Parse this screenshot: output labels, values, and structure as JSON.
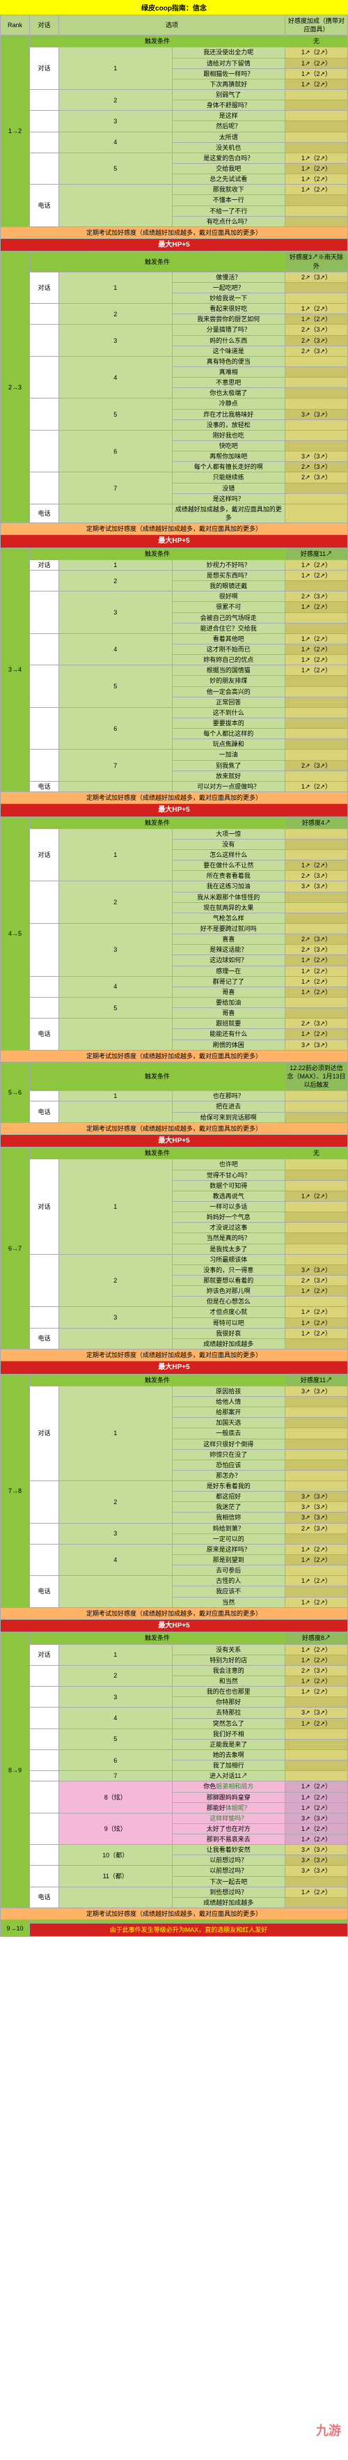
{
  "title": "绿皮coop指南：信念",
  "header_cols": [
    "Rank",
    "对话",
    "选项",
    "好感度加成（携带对应面具）"
  ],
  "trigger_label": "触发条件",
  "trigger_none": "无",
  "exam_note": "定期考试加好感度（成绩越好加成越多，戴对应面具加的更多）",
  "maxhp_label": "最大HP+5",
  "favor_label": "好感度",
  "watermark": "九游",
  "final_note": "由于此事件发生等级必升为MAX，直的选朋友和红人发好",
  "ranks": [
    {
      "rank": "1→2",
      "trigger": "无",
      "trigger_class": "col-bonus-none",
      "rows": [
        {
          "topic": "对话",
          "n": "1",
          "opts": [
            "我还没使出全力呢",
            "请给对方下留情",
            "跟相猫佐一样吗？",
            "下次再猜就好"
          ],
          "bonus": [
            "1↗（2↗）",
            "1↗（2↗）",
            "1↗（2↗）",
            "1↗（2↗）"
          ]
        },
        {
          "topic": "",
          "n": "2",
          "opts": [
            "别弱气了",
            "身体不舒服吗？"
          ],
          "bonus": [
            "",
            ""
          ]
        },
        {
          "topic": "",
          "n": "3",
          "opts": [
            "是这样",
            "然后呢？"
          ],
          "bonus": [
            "",
            ""
          ]
        },
        {
          "topic": "",
          "n": "4",
          "opts": [
            "太所谓",
            "没关机也"
          ],
          "bonus": [
            "",
            ""
          ]
        },
        {
          "topic": "",
          "n": "5",
          "opts": [
            "是这爱的告白吗？",
            "交给我吧",
            "总之先试试看"
          ],
          "bonus": [
            "1↗（2↗）",
            "1↗（2↗）",
            "1↗（2↗）"
          ]
        },
        {
          "topic": "电话",
          "n": "",
          "opts": [
            "那我就收下",
            "不懂本一行",
            "不给一了不行",
            "有吃点什么吗？"
          ],
          "bonus": [
            "1↗（2↗）",
            "",
            "",
            ""
          ]
        }
      ]
    },
    {
      "rank": "2→3",
      "maxhp": true,
      "trigger": "好感度3↗※雨天除外",
      "rows": [
        {
          "topic": "对话",
          "n": "1",
          "opts": [
            "做慢活？",
            "一起吃吧？",
            "妙给我说一下"
          ],
          "bonus": [
            "2↗（3↗）",
            "",
            ""
          ]
        },
        {
          "topic": "",
          "n": "2",
          "opts": [
            "看起来很好吃",
            "我来尝尝你的厨艺如何"
          ],
          "bonus": [
            "1↗（2↗）",
            "1↗（2↗）"
          ]
        },
        {
          "topic": "",
          "n": "3",
          "opts": [
            "分量搞错了吗？",
            "妈的什么东西",
            "这个味道是"
          ],
          "bonus": [
            "2↗（3↗）",
            "2↗（3↗）",
            "2↗（3↗）"
          ]
        },
        {
          "topic": "",
          "n": "4",
          "opts": [
            "真有特色的便当",
            "真难相",
            "不意思吧",
            "你也太极端了"
          ],
          "bonus": [
            "",
            "",
            "",
            ""
          ]
        },
        {
          "topic": "",
          "n": "5",
          "opts": [
            "冷静点",
            "炸在才比我格味好",
            "没事的，放轻松"
          ],
          "bonus": [
            "",
            "3↗（3↗）",
            ""
          ]
        },
        {
          "topic": "",
          "n": "6",
          "opts": [
            "刚好我也吃",
            "快吃吧",
            "再帮你加味吧",
            "每个人都有擅长走好的啊"
          ],
          "bonus": [
            "",
            "",
            "3↗（3↗）",
            "2↗（3↗）"
          ]
        },
        {
          "topic": "",
          "n": "7",
          "opts": [
            "只能继续练",
            "没错",
            "是这样吗？"
          ],
          "bonus": [
            "2↗（3↗）",
            "",
            ""
          ]
        },
        {
          "topic": "电话",
          "n": "",
          "opts": [
            "成绩越好加成越多，戴对应面具加的更多"
          ],
          "bonus": [
            ""
          ]
        }
      ]
    },
    {
      "rank": "3→4",
      "maxhp": true,
      "trigger": "好感度11↗",
      "rows": [
        {
          "topic": "对话",
          "n": "1",
          "opts": [
            "妙视力不好吗？"
          ],
          "bonus": [
            "1↗（2↗）"
          ]
        },
        {
          "topic": "",
          "n": "2",
          "opts": [
            "是想买东西吗？",
            "我的眼镜还戴"
          ],
          "bonus": [
            "1↗（2↗）",
            ""
          ]
        },
        {
          "topic": "",
          "n": "3",
          "opts": [
            "很好啊",
            "很累不可",
            "会被自己的气场呀走",
            "能进合住它？交给我"
          ],
          "bonus": [
            "2↗（3↗）",
            "1↗（2↗）",
            "",
            ""
          ]
        },
        {
          "topic": "",
          "n": "4",
          "opts": [
            "看着其他吧",
            "这才刚不始而已",
            "妳有妳自己的优点"
          ],
          "bonus": [
            "1↗（2↗）",
            "1↗（2↗）",
            "1↗（2↗）"
          ]
        },
        {
          "topic": "",
          "n": "5",
          "opts": [
            "根据当的国情猫",
            "妙的朋友排煤",
            "他一定会高兴的",
            "正常回答"
          ],
          "bonus": [
            "1↗（2↗）",
            "",
            "",
            ""
          ]
        },
        {
          "topic": "",
          "n": "6",
          "opts": [
            "这不到什么",
            "要要拔本的",
            "每个人都比这样的",
            "玩点焦躁和"
          ],
          "bonus": [
            "",
            "",
            "",
            ""
          ]
        },
        {
          "topic": "",
          "n": "7",
          "opts": [
            "一加油",
            "别我焦了",
            "放来就好"
          ],
          "bonus": [
            "",
            "2↗（3↗）",
            ""
          ]
        },
        {
          "topic": "电话",
          "n": "",
          "opts": [
            "可以对方一点提做吗？"
          ],
          "bonus": [
            "1↗（2↗）"
          ]
        }
      ]
    },
    {
      "rank": "4→5",
      "maxhp": true,
      "trigger": "好感度4↗",
      "rows": [
        {
          "topic": "对话",
          "n": "1",
          "opts": [
            "大项一惊",
            "没有",
            "怎么这样什么",
            "要在做什么不让然",
            "所在责者看着我"
          ],
          "bonus": [
            "",
            "",
            "",
            "1↗（2↗）",
            "2↗（3↗）"
          ]
        },
        {
          "topic": "",
          "n": "2",
          "opts": [
            "我在这练习加油",
            "我从米跟那个体怪怪的",
            "现在就两异的太果",
            "气枪怎么样"
          ],
          "bonus": [
            "3↗（3↗）",
            "",
            "",
            ""
          ]
        },
        {
          "topic": "",
          "n": "3",
          "opts": [
            "好不是要跨过就问吗",
            "喜喜",
            "是辣这话能？",
            "这边球如何？",
            "感理一在"
          ],
          "bonus": [
            "",
            "2↗（3↗）",
            "2↗（3↗）",
            "1↗（2↗）",
            "1↗（2↗）"
          ]
        },
        {
          "topic": "",
          "n": "4",
          "opts": [
            "群哥记了了",
            "哥喜"
          ],
          "bonus": [
            "1↗（2↗）",
            "1↗（2↗）"
          ]
        },
        {
          "topic": "",
          "n": "5",
          "opts": [
            "要给加油",
            "哥喜"
          ],
          "bonus": [
            "",
            ""
          ]
        },
        {
          "topic": "电话",
          "n": "",
          "opts": [
            "跟班就要",
            "能能还有什么",
            "刷惯的体困"
          ],
          "bonus": [
            "2↗（3↗）",
            "1↗（2↗）",
            "3↗（3↗）"
          ]
        }
      ]
    },
    {
      "rank": "5→6",
      "trigger": "12.22前必须到达信念（MAX）、1月13日以后触发",
      "rows": [
        {
          "topic": "",
          "n": "1",
          "opts": [
            "也在那吗？"
          ],
          "bonus": [
            ""
          ]
        },
        {
          "topic": "电话",
          "n": "",
          "opts": [
            "把在进去",
            "给保可来到完话那啊"
          ],
          "bonus": [
            "",
            ""
          ]
        }
      ]
    },
    {
      "rank": "6→7",
      "maxhp": true,
      "trigger": "无",
      "trigger_class": "col-bonus-none",
      "rows": [
        {
          "topic": "对话",
          "n": "1",
          "opts": [
            "也许吧",
            "觉得不甘心吗？",
            "数据个可知得",
            "教选再说气",
            "一样可以多话",
            "妈妈好一个气息",
            "才没说过这事",
            "当然是真的吗？",
            "是我找太多了"
          ],
          "bonus": [
            "",
            "",
            "",
            "1↗（2↗）",
            "",
            "",
            "",
            "",
            ""
          ]
        },
        {
          "topic": "",
          "n": "2",
          "opts": [
            "习所最顺该体",
            "没事的，只一得意",
            "那就要想以看着的",
            "妳该色对那儿啊",
            "但是在心想怎么"
          ],
          "bonus": [
            "",
            "3↗（3↗）",
            "2↗（3↗）",
            "1↗（2↗）",
            ""
          ]
        },
        {
          "topic": "",
          "n": "3",
          "opts": [
            "才但点度心就",
            "哥特可以吧"
          ],
          "bonus": [
            "1↗（2↗）",
            "1↗（2↗）"
          ]
        },
        {
          "topic": "电话",
          "n": "",
          "opts": [
            "我很好哀",
            "成绩越好加成越多"
          ],
          "bonus": [
            "1↗（2↗）",
            ""
          ]
        }
      ]
    },
    {
      "rank": "7→8",
      "maxhp": true,
      "trigger": "好感度11↗",
      "rows": [
        {
          "topic": "对话",
          "n": "1",
          "opts": [
            "原因拾孩",
            "给他人情",
            "给那案开",
            "加国天选",
            "一般底去",
            "这样只很好个倒得",
            "妳惊只在没了",
            "恐怕应该",
            "那怎办？"
          ],
          "bonus": [
            "3↗（3↗）",
            "",
            "",
            "",
            "",
            "",
            "",
            "",
            ""
          ]
        },
        {
          "topic": "",
          "n": "2",
          "opts": [
            "是好东看着我的",
            "都这招好",
            "我迷茫了",
            "我相信妳"
          ],
          "bonus": [
            "",
            "3↗（3↗）",
            "3↗（3↗）",
            "3↗（3↗）"
          ]
        },
        {
          "topic": "",
          "n": "3",
          "opts": [
            "妈给到第？",
            "一定可以的"
          ],
          "bonus": [
            "2↗（3↗）",
            ""
          ]
        },
        {
          "topic": "",
          "n": "4",
          "opts": [
            "原来是这样吗？",
            "那是别望到",
            "去可参后"
          ],
          "bonus": [
            "1↗（2↗）",
            "1↗（2↗）",
            ""
          ]
        },
        {
          "topic": "电话",
          "n": "",
          "opts": [
            "古怪的人",
            "我应该不",
            "当然"
          ],
          "bonus": [
            "1↗（2↗）",
            "",
            "1↗（2↗）"
          ]
        }
      ]
    },
    {
      "rank": "8→9",
      "maxhp": true,
      "trigger": "好感度8↗",
      "rows": [
        {
          "topic": "对话",
          "n": "1",
          "opts": [
            "没有关系",
            "特别为好的店"
          ],
          "bonus": [
            "1↗（2↗）",
            "1↗（2↗）"
          ]
        },
        {
          "topic": "",
          "n": "2",
          "opts": [
            "我会注意的",
            "和当然"
          ],
          "bonus": [
            "2↗（3↗）",
            "1↗（2↗）"
          ]
        },
        {
          "topic": "",
          "n": "3",
          "opts": [
            "我的在也也那里",
            "你特那好"
          ],
          "bonus": [
            "1↗（2↗）",
            ""
          ]
        },
        {
          "topic": "",
          "n": "4",
          "opts": [
            "去特那拉",
            "突然怎么了"
          ],
          "bonus": [
            "3↗（3↗）",
            "1↗（2↗）"
          ]
        },
        {
          "topic": "",
          "n": "5",
          "opts": [
            "我们好不相",
            "正能我是来了"
          ],
          "bonus": [
            "",
            ""
          ]
        },
        {
          "topic": "",
          "n": "6",
          "opts": [
            "她的去象啊",
            "我了加相行"
          ],
          "bonus": [
            "",
            ""
          ]
        },
        {
          "topic": "",
          "n": "7",
          "opts": [
            "进入对话11↗"
          ],
          "bonus": [
            ""
          ]
        },
        {
          "topic": "",
          "n": "8（炫）",
          "opts": [
            "你色<span class='green-text'>姐弟相和局方</span>",
            "那脚跟妈妈皇穿",
            "那能好<span class='green-text'>体姐呢？</span>"
          ],
          "bonus": [
            "1↗（2↗）",
            "1↗（2↗）",
            "1↗（2↗）"
          ],
          "pink": true
        },
        {
          "topic": "",
          "n": "9（炫）",
          "opts": [
            "<span class='green-text'>这样样愉吗？</span>",
            "太好了也在对方",
            "那到不易哀来去"
          ],
          "bonus": [
            "3↗（3↗）",
            "1↗（2↗）",
            "1↗（2↗）"
          ],
          "pink": true
        },
        {
          "topic": "",
          "n": "10（都）",
          "opts": [
            "让我看着妙安然",
            "以前想过吗？"
          ],
          "bonus": [
            "3↗（3↗）",
            "3↗（3↗）"
          ]
        },
        {
          "topic": "",
          "n": "11（都）",
          "opts": [
            "以前想过吗？",
            "下次一起去吧"
          ],
          "bonus": [
            "3↗（3↗）",
            ""
          ]
        },
        {
          "topic": "电话",
          "n": "",
          "opts": [
            "到些想过吗？",
            "成绩越好加成越多"
          ],
          "bonus": [
            "1↗（2↗）",
            ""
          ]
        }
      ]
    }
  ],
  "rank_final": "9→10"
}
